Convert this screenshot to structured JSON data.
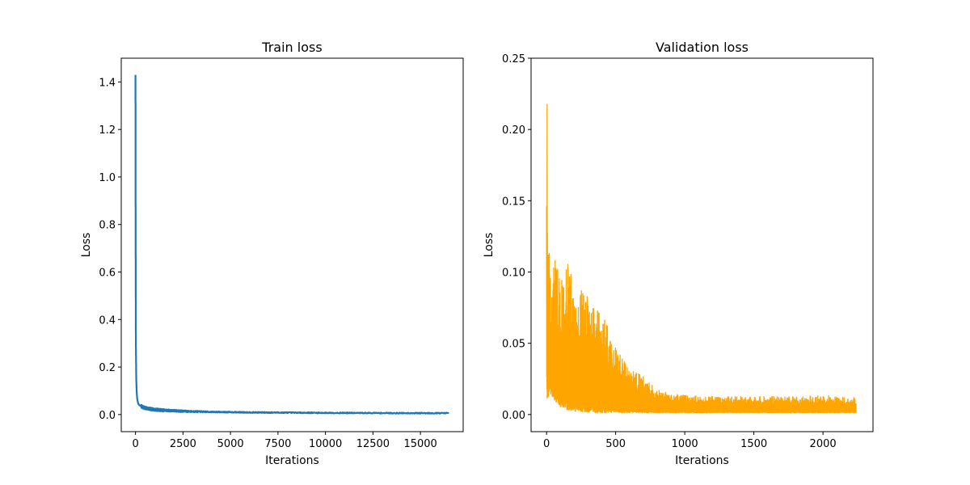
{
  "chart_data": [
    {
      "type": "line",
      "title": "Train loss",
      "xlabel": "Iterations",
      "ylabel": "Loss",
      "xlim": [
        -750,
        17250
      ],
      "ylim": [
        -0.072,
        1.5
      ],
      "xticks": [
        0,
        2500,
        5000,
        7500,
        10000,
        12500,
        15000
      ],
      "xtick_labels": [
        "0",
        "2500",
        "5000",
        "7500",
        "10000",
        "12500",
        "15000"
      ],
      "yticks": [
        0.0,
        0.2,
        0.4,
        0.6,
        0.8,
        1.0,
        1.2,
        1.4
      ],
      "ytick_labels": [
        "0.0",
        "0.2",
        "0.4",
        "0.6",
        "0.8",
        "1.0",
        "1.2",
        "1.4"
      ],
      "grid": false,
      "color": "#1f77b4",
      "series": [
        {
          "x": [
            0,
            5,
            10,
            15,
            20,
            30,
            40,
            60,
            80,
            100,
            150,
            200,
            300,
            400,
            600,
            800,
            1000,
            1500,
            2000,
            2500,
            3000,
            4000,
            5000,
            6000,
            8000,
            10000,
            12000,
            14000,
            16500
          ],
          "y": [
            1.43,
            0.9,
            0.65,
            0.43,
            0.3,
            0.22,
            0.15,
            0.1,
            0.075,
            0.06,
            0.045,
            0.04,
            0.035,
            0.03,
            0.026,
            0.023,
            0.021,
            0.018,
            0.016,
            0.014,
            0.013,
            0.011,
            0.01,
            0.009,
            0.008,
            0.007,
            0.0065,
            0.006,
            0.006
          ],
          "noise_band": [
            0.004,
            0.02
          ]
        }
      ]
    },
    {
      "type": "line",
      "title": "Validation loss",
      "xlabel": "Iterations",
      "ylabel": "Loss",
      "xlim": [
        -112,
        2362
      ],
      "ylim": [
        -0.012,
        0.25
      ],
      "xticks": [
        0,
        500,
        1000,
        1500,
        2000
      ],
      "xtick_labels": [
        "0",
        "500",
        "1000",
        "1500",
        "2000"
      ],
      "yticks": [
        0.0,
        0.05,
        0.1,
        0.15,
        0.2,
        0.25
      ],
      "ytick_labels": [
        "0.00",
        "0.05",
        "0.10",
        "0.15",
        "0.20",
        "0.25"
      ],
      "grid": false,
      "color": "#ffa500",
      "series": [
        {
          "x": [
            0,
            5,
            10,
            20,
            40,
            60,
            100,
            150,
            200,
            250,
            300,
            350,
            400,
            450,
            500,
            600,
            700,
            800,
            900,
            1000,
            1200,
            1400,
            1600,
            1800,
            2000,
            2240
          ],
          "upper": [
            0.239,
            0.225,
            0.133,
            0.115,
            0.092,
            0.111,
            0.1,
            0.109,
            0.094,
            0.09,
            0.087,
            0.079,
            0.072,
            0.062,
            0.047,
            0.032,
            0.028,
            0.018,
            0.015,
            0.014,
            0.013,
            0.013,
            0.013,
            0.013,
            0.014,
            0.012
          ],
          "lower": [
            0.02,
            0.01,
            0.008,
            0.016,
            0.012,
            0.009,
            0.005,
            0.003,
            0.002,
            0.0015,
            0.0012,
            0.001,
            0.001,
            0.001,
            0.001,
            0.001,
            0.001,
            0.001,
            0.001,
            0.001,
            0.001,
            0.001,
            0.001,
            0.001,
            0.001,
            0.001
          ]
        }
      ]
    }
  ]
}
